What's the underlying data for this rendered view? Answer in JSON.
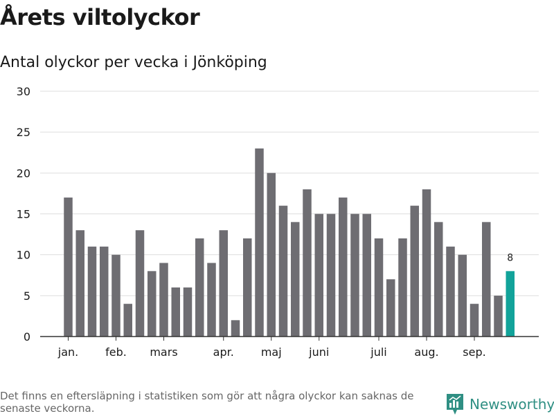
{
  "title": "Årets viltolyckor",
  "subtitle": "Antal olyckor per vecka i Jönköping",
  "footnote": "Det finns en eftersläpning i statistiken som gör att några olyckor kan saknas de senaste veckorna.",
  "brand": {
    "name": "Newsworthy",
    "icon": "newsworthy-logo-icon",
    "color": "#2f8f83"
  },
  "chart_data": {
    "type": "bar",
    "title": "Antal olyckor per vecka i Jönköping",
    "xlabel": "",
    "ylabel": "",
    "ylim": [
      0,
      30
    ],
    "yticks": [
      0,
      5,
      10,
      15,
      20,
      25,
      30
    ],
    "grid": true,
    "bar_color": "#6e6d72",
    "highlight_color": "#12a39a",
    "values": [
      17,
      13,
      11,
      11,
      10,
      4,
      13,
      8,
      9,
      6,
      6,
      12,
      9,
      13,
      2,
      12,
      23,
      20,
      16,
      14,
      18,
      15,
      15,
      17,
      15,
      15,
      12,
      7,
      12,
      16,
      18,
      14,
      11,
      10,
      4,
      14,
      5,
      8
    ],
    "highlight": {
      "index": 37,
      "label": "8"
    },
    "month_labels": [
      {
        "label": "jan.",
        "week_index": 0
      },
      {
        "label": "feb.",
        "week_index": 4
      },
      {
        "label": "mars",
        "week_index": 8
      },
      {
        "label": "apr.",
        "week_index": 13
      },
      {
        "label": "maj",
        "week_index": 17
      },
      {
        "label": "juni",
        "week_index": 21
      },
      {
        "label": "juli",
        "week_index": 26
      },
      {
        "label": "aug.",
        "week_index": 30
      },
      {
        "label": "sep.",
        "week_index": 34
      }
    ]
  }
}
